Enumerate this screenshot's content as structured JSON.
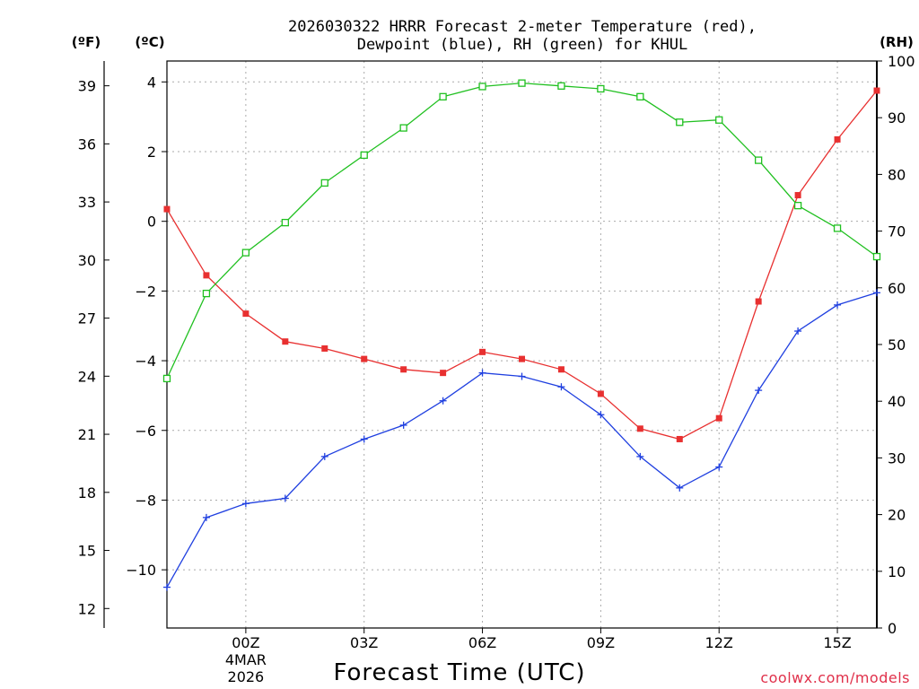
{
  "chart_data": {
    "type": "line",
    "title_lines": [
      "2026030322 HRRR Forecast 2-meter Temperature (red),",
      "Dewpoint (blue), RH (green) for KHUL"
    ],
    "xlabel": "Forecast Time (UTC)",
    "credit": "coolwx.com/models",
    "units": {
      "fahrenheit": "(ºF)",
      "celsius": "(ºC)",
      "rh": "(RH)"
    },
    "x_hours": [
      -2,
      -1,
      0,
      1,
      2,
      3,
      4,
      5,
      6,
      7,
      8,
      9,
      10,
      11,
      12,
      13,
      14,
      15,
      16
    ],
    "x_range": [
      -2,
      16
    ],
    "x_ticks": [
      {
        "hour": 0,
        "label": "00Z"
      },
      {
        "hour": 3,
        "label": "03Z"
      },
      {
        "hour": 6,
        "label": "06Z"
      },
      {
        "hour": 9,
        "label": "09Z"
      },
      {
        "hour": 12,
        "label": "12Z"
      },
      {
        "hour": 15,
        "label": "15Z"
      }
    ],
    "date_label": {
      "hour": 0,
      "lines": [
        "4MAR",
        "2026"
      ]
    },
    "celsius_axis": {
      "range": [
        -11.67,
        4.6
      ],
      "ticks": [
        4,
        2,
        0,
        -2,
        -4,
        -6,
        -8,
        -10
      ],
      "tick_labels": [
        "4",
        "2",
        "0",
        "−2",
        "−4",
        "−6",
        "−8",
        "−10"
      ]
    },
    "fahrenheit_axis": {
      "ticks": [
        39,
        36,
        33,
        30,
        27,
        24,
        21,
        18,
        15,
        12
      ]
    },
    "rh_axis": {
      "range": [
        0,
        100
      ],
      "ticks": [
        100,
        90,
        80,
        70,
        60,
        50,
        40,
        30,
        20,
        10,
        0
      ]
    },
    "series": [
      {
        "name": "Temperature",
        "unit": "C",
        "color": "#e83030",
        "marker": "filled-square",
        "values": [
          0.35,
          -1.55,
          -2.65,
          -3.45,
          -3.65,
          -3.95,
          -4.25,
          -4.35,
          -3.75,
          -3.95,
          -4.25,
          -4.95,
          -5.95,
          -6.25,
          -5.65,
          -2.3,
          0.75,
          2.35,
          3.75
        ]
      },
      {
        "name": "Dewpoint",
        "unit": "C",
        "color": "#2040e0",
        "marker": "plus",
        "values": [
          -10.5,
          -8.5,
          -8.1,
          -7.95,
          -6.75,
          -6.25,
          -5.85,
          -5.15,
          -4.35,
          -4.45,
          -4.75,
          -5.55,
          -6.75,
          -7.65,
          -7.05,
          -4.85,
          -3.15,
          -2.4,
          -2.05
        ]
      },
      {
        "name": "RH",
        "unit": "%",
        "color": "#20c020",
        "marker": "open-square",
        "values": [
          44,
          59,
          66.2,
          71.5,
          78.5,
          83.4,
          88.2,
          93.7,
          95.5,
          96.1,
          95.6,
          95.1,
          93.7,
          89.2,
          89.6,
          82.5,
          74.5,
          70.5,
          65.5
        ]
      }
    ]
  }
}
